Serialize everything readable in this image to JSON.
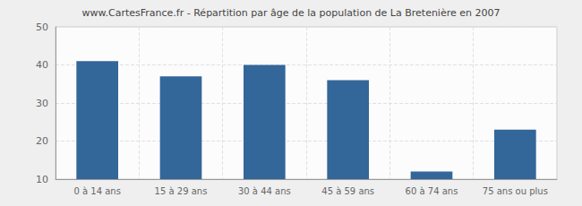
{
  "chart_data": {
    "type": "bar",
    "title": "www.CartesFrance.fr - Répartition par âge de la population de La Bretenière en 2007",
    "categories": [
      "0 à 14 ans",
      "15 à 29 ans",
      "30 à 44 ans",
      "45 à 59 ans",
      "60 à 74 ans",
      "75 ans ou plus"
    ],
    "values": [
      41,
      37,
      40,
      36,
      12,
      23
    ],
    "color": "#336699",
    "ylim": [
      10,
      50
    ],
    "yticks": [
      10,
      20,
      30,
      40,
      50
    ],
    "grid": true
  }
}
